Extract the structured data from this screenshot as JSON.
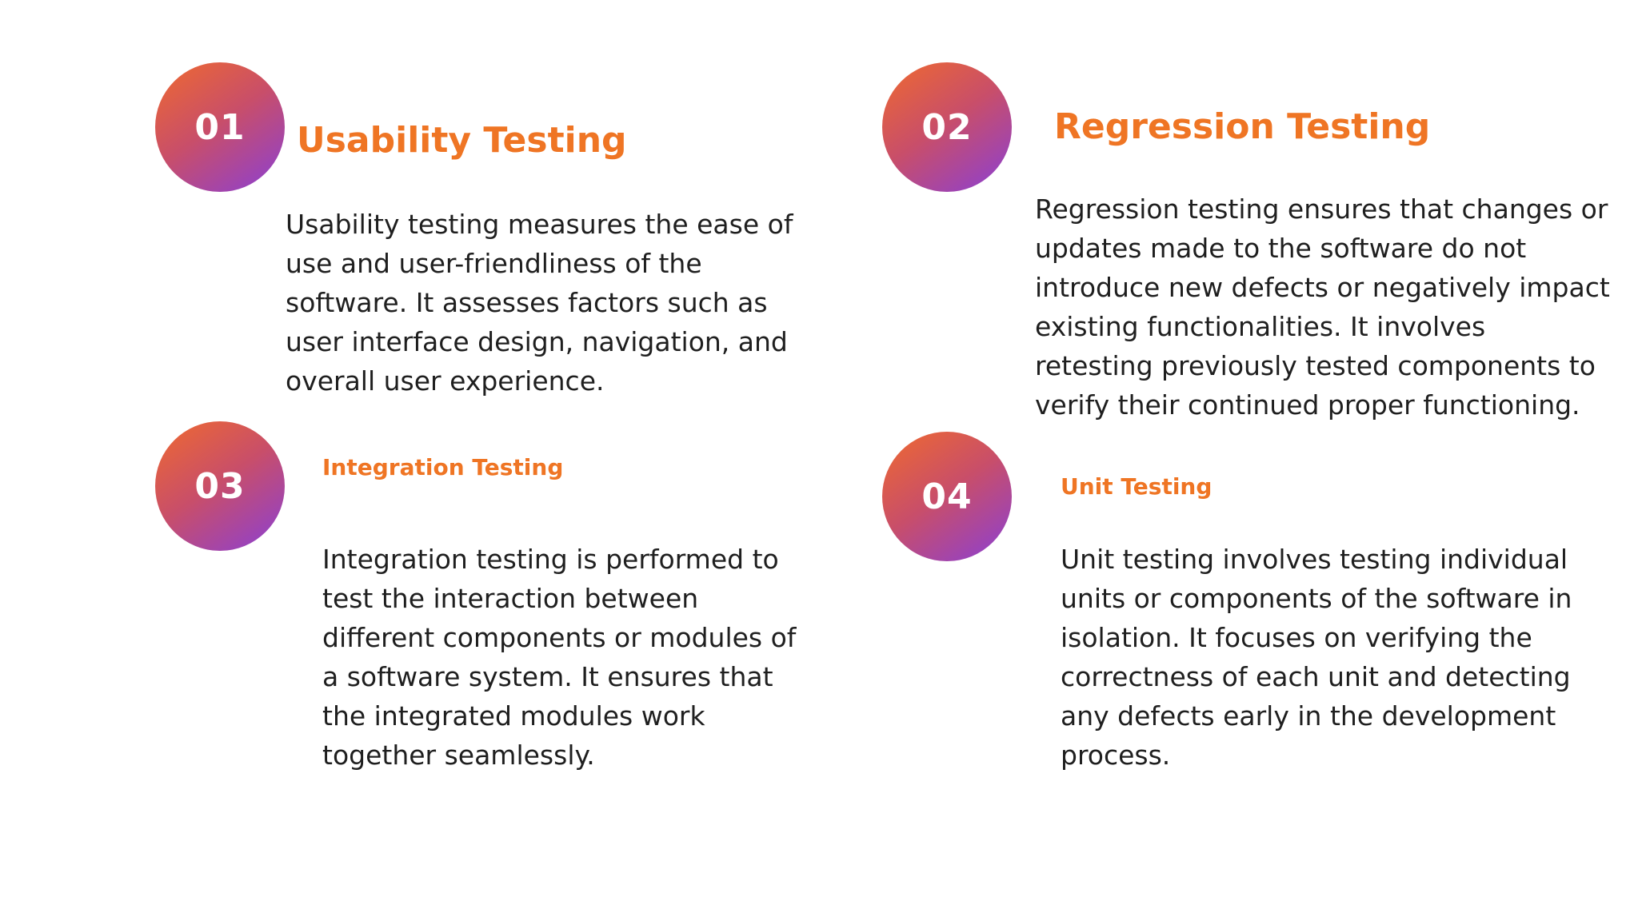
{
  "items": [
    {
      "number": "01",
      "title": "Usability Testing",
      "description": "Usability testing measures the ease of use and user-friendliness of the software. It assesses factors such as user interface design, navigation, and overall user experience."
    },
    {
      "number": "02",
      "title": "Regression Testing",
      "description": "Regression testing ensures that changes or updates made to the software do not introduce new defects or negatively impact existing functionalities. It involves retesting previously tested components to verify their continued proper functioning."
    },
    {
      "number": "03",
      "title": "Integration Testing",
      "description": "Integration testing is performed to test the interaction between different components or modules of a software system. It ensures that the integrated modules work together seamlessly."
    },
    {
      "number": "04",
      "title": "Unit Testing",
      "description": "Unit testing involves testing individual units or components of the software in isolation. It focuses on verifying the correctness of each unit and detecting any defects early in the development process."
    }
  ],
  "colors": {
    "accent": "#ef7524",
    "badge_gradient_start": "#f06a2e",
    "badge_gradient_end": "#8a3fd6",
    "text": "#1f1f1f",
    "background": "#ffffff"
  }
}
